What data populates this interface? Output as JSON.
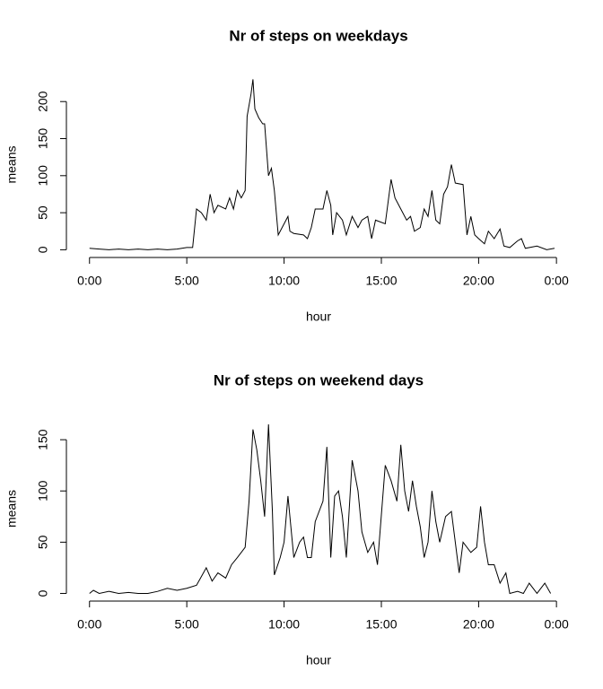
{
  "chart_data": [
    {
      "type": "line",
      "title": "Nr of steps on weekdays",
      "xlabel": "hour",
      "ylabel": "means",
      "color": "#000000",
      "x": [
        0,
        0.5,
        1,
        1.5,
        2,
        2.5,
        3,
        3.5,
        4,
        4.5,
        5,
        5.3,
        5.5,
        5.75,
        6,
        6.2,
        6.4,
        6.6,
        7,
        7.2,
        7.4,
        7.6,
        7.8,
        8,
        8.1,
        8.3,
        8.4,
        8.5,
        8.7,
        8.9,
        9,
        9.2,
        9.35,
        9.5,
        9.7,
        10,
        10.2,
        10.3,
        10.5,
        11,
        11.2,
        11.4,
        11.6,
        12,
        12.2,
        12.4,
        12.5,
        12.7,
        13,
        13.2,
        13.5,
        13.8,
        14,
        14.3,
        14.5,
        14.7,
        15.2,
        15.5,
        15.7,
        16,
        16.3,
        16.5,
        16.7,
        17,
        17.2,
        17.4,
        17.6,
        17.8,
        18,
        18.2,
        18.4,
        18.6,
        18.8,
        19.2,
        19.4,
        19.6,
        19.8,
        20,
        20.3,
        20.5,
        20.8,
        21.1,
        21.3,
        21.6,
        22,
        22.2,
        22.4,
        23,
        23.5,
        23.9
      ],
      "values": [
        2,
        1,
        0,
        1,
        0,
        1,
        0,
        1,
        0,
        1,
        3,
        3,
        55,
        50,
        40,
        75,
        50,
        60,
        55,
        70,
        55,
        80,
        70,
        80,
        180,
        210,
        230,
        190,
        178,
        170,
        170,
        100,
        110,
        80,
        20,
        35,
        45,
        25,
        22,
        20,
        15,
        30,
        55,
        55,
        80,
        60,
        20,
        50,
        40,
        20,
        45,
        30,
        40,
        45,
        15,
        40,
        35,
        95,
        70,
        55,
        40,
        45,
        25,
        30,
        55,
        45,
        80,
        40,
        35,
        75,
        85,
        115,
        90,
        88,
        20,
        45,
        20,
        15,
        8,
        25,
        15,
        28,
        5,
        3,
        12,
        15,
        2,
        5,
        0,
        2
      ],
      "xlim": [
        -0.957,
        24.87
      ],
      "ylim": [
        -9.2,
        239
      ],
      "xticks": [
        {
          "value": 0,
          "label": "0:00"
        },
        {
          "value": 5,
          "label": "5:00"
        },
        {
          "value": 10,
          "label": "10:00"
        },
        {
          "value": 15,
          "label": "15:00"
        },
        {
          "value": 20,
          "label": "20:00"
        },
        {
          "value": 24,
          "label": "0:00"
        }
      ],
      "yticks": [
        0,
        50,
        100,
        150,
        200
      ]
    },
    {
      "type": "line",
      "title": "Nr of steps on weekend days",
      "xlabel": "hour",
      "ylabel": "means",
      "color": "#000000",
      "x": [
        0,
        0.2,
        0.5,
        1,
        1.5,
        2,
        2.5,
        3,
        3.5,
        4,
        4.5,
        5,
        5.5,
        6,
        6.3,
        6.6,
        7,
        7.3,
        7.6,
        8,
        8.2,
        8.4,
        8.6,
        8.8,
        9,
        9.2,
        9.4,
        9.5,
        9.8,
        10,
        10.2,
        10.4,
        10.5,
        10.8,
        11,
        11.2,
        11.4,
        11.6,
        12,
        12.2,
        12.4,
        12.6,
        12.8,
        13,
        13.2,
        13.5,
        13.8,
        14,
        14.3,
        14.6,
        14.8,
        15.2,
        15.5,
        15.8,
        16,
        16.2,
        16.4,
        16.6,
        16.8,
        17,
        17.2,
        17.4,
        17.6,
        17.8,
        18,
        18.3,
        18.6,
        19,
        19.2,
        19.6,
        19.9,
        20.1,
        20.3,
        20.5,
        20.8,
        21.1,
        21.4,
        21.6,
        22,
        22.3,
        22.6,
        23,
        23.4,
        23.7
      ],
      "values": [
        0,
        3,
        0,
        2,
        0,
        1,
        0,
        0,
        2,
        5,
        3,
        5,
        8,
        25,
        12,
        20,
        15,
        28,
        35,
        45,
        90,
        160,
        140,
        110,
        75,
        165,
        80,
        18,
        35,
        50,
        95,
        55,
        35,
        50,
        55,
        35,
        35,
        70,
        90,
        143,
        35,
        95,
        100,
        75,
        35,
        130,
        100,
        60,
        40,
        50,
        28,
        125,
        110,
        90,
        145,
        100,
        80,
        110,
        85,
        65,
        35,
        50,
        100,
        70,
        50,
        75,
        80,
        20,
        50,
        40,
        45,
        85,
        50,
        28,
        28,
        10,
        20,
        0,
        2,
        0,
        10,
        0,
        10,
        0
      ],
      "xlim": [
        -0.957,
        24.87
      ],
      "ylim": [
        -6.6,
        172
      ],
      "xticks": [
        {
          "value": 0,
          "label": "0:00"
        },
        {
          "value": 5,
          "label": "5:00"
        },
        {
          "value": 10,
          "label": "10:00"
        },
        {
          "value": 15,
          "label": "15:00"
        },
        {
          "value": 20,
          "label": "20:00"
        },
        {
          "value": 24,
          "label": "0:00"
        }
      ],
      "yticks": [
        0,
        50,
        100,
        150
      ]
    }
  ]
}
